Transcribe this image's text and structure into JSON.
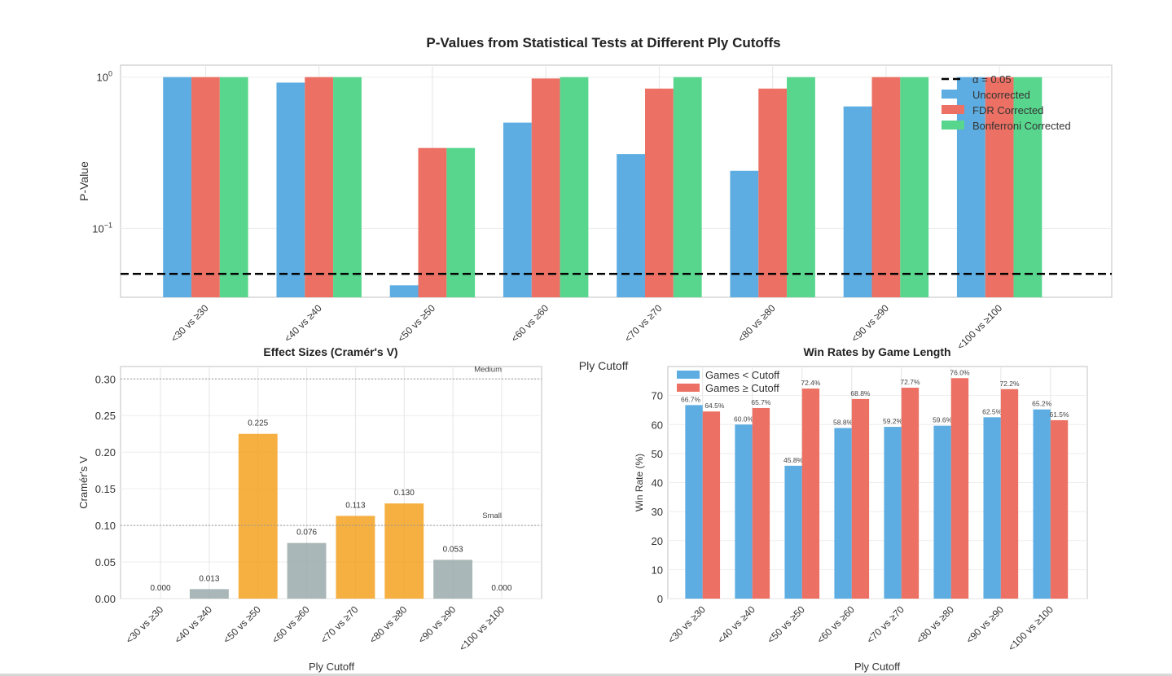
{
  "chart_data": [
    {
      "type": "bar",
      "title": "P-Values from Statistical Tests at Different Ply Cutoffs",
      "xlabel": "Ply Cutoff",
      "ylabel": "P-Value",
      "yscale": "log",
      "ylim": [
        0.035,
        1.2
      ],
      "yticks": [
        {
          "value": 1,
          "label": "10",
          "exp": "0"
        },
        {
          "value": 0.1,
          "label": "10",
          "exp": "−1"
        }
      ],
      "grid": true,
      "legend_position": "top-right",
      "categories": [
        "<30 vs ≥30",
        "<40 vs ≥40",
        "<50 vs ≥50",
        "<60 vs ≥60",
        "<70 vs ≥70",
        "<80 vs ≥80",
        "<90 vs ≥90",
        "<100 vs ≥100"
      ],
      "series": [
        {
          "name": "Uncorrected",
          "color": "#5dade2",
          "values": [
            1.0,
            0.92,
            0.042,
            0.5,
            0.31,
            0.24,
            0.64,
            1.0
          ]
        },
        {
          "name": "FDR Corrected",
          "color": "#ec7063",
          "values": [
            1.0,
            1.0,
            0.34,
            0.98,
            0.84,
            0.84,
            1.0,
            1.0
          ]
        },
        {
          "name": "Bonferroni Corrected",
          "color": "#58d68d",
          "values": [
            1.0,
            1.0,
            0.34,
            1.0,
            1.0,
            1.0,
            1.0,
            1.0
          ]
        }
      ],
      "reference_line": {
        "name": "α = 0.05",
        "value": 0.05,
        "color": "#000000",
        "style": "dashed"
      }
    },
    {
      "type": "bar",
      "title": "Effect Sizes (Cramér's V)",
      "xlabel": "Ply Cutoff",
      "ylabel": "Cramér's V",
      "ylim": [
        0,
        0.317
      ],
      "yticks": [
        "0.00",
        "0.05",
        "0.10",
        "0.15",
        "0.20",
        "0.25",
        "0.30"
      ],
      "grid": true,
      "categories": [
        "<30 vs ≥30",
        "<40 vs ≥40",
        "<50 vs ≥50",
        "<60 vs ≥60",
        "<70 vs ≥70",
        "<80 vs ≥80",
        "<90 vs ≥90",
        "<100 vs ≥100"
      ],
      "values": [
        0.0,
        0.013,
        0.225,
        0.076,
        0.113,
        0.13,
        0.053,
        0.0
      ],
      "data_labels": [
        "0.000",
        "0.013",
        "0.225",
        "0.076",
        "0.113",
        "0.130",
        "0.053",
        "0.000"
      ],
      "bar_colors": [
        "#95a5a6",
        "#95a5a6",
        "#f39c12",
        "#95a5a6",
        "#f39c12",
        "#f39c12",
        "#95a5a6",
        "#95a5a6"
      ],
      "reference_lines": [
        {
          "label": "Small",
          "value": 0.1
        },
        {
          "label": "Medium",
          "value": 0.3
        }
      ]
    },
    {
      "type": "bar",
      "title": "Win Rates by Game Length",
      "xlabel": "Ply Cutoff",
      "ylabel": "Win Rate (%)",
      "ylim": [
        0,
        80
      ],
      "yticks": [
        "0",
        "10",
        "20",
        "30",
        "40",
        "50",
        "60",
        "70"
      ],
      "grid": true,
      "legend_position": "top-left",
      "categories": [
        "<30 vs ≥30",
        "<40 vs ≥40",
        "<50 vs ≥50",
        "<60 vs ≥60",
        "<70 vs ≥70",
        "<80 vs ≥80",
        "<90 vs ≥90",
        "<100 vs ≥100"
      ],
      "series": [
        {
          "name": "Games < Cutoff",
          "color": "#5dade2",
          "values": [
            66.7,
            60.0,
            45.8,
            58.8,
            59.2,
            59.6,
            62.5,
            65.2
          ],
          "data_labels": [
            "66.7%",
            "60.0%",
            "45.8%",
            "58.8%",
            "59.2%",
            "59.6%",
            "62.5%",
            "65.2%"
          ]
        },
        {
          "name": "Games ≥ Cutoff",
          "color": "#ec7063",
          "values": [
            64.5,
            65.7,
            72.4,
            68.8,
            72.7,
            76.0,
            72.2,
            61.5
          ],
          "data_labels": [
            "64.5%",
            "65.7%",
            "72.4%",
            "68.8%",
            "72.7%",
            "76.0%",
            "72.2%",
            "61.5%"
          ]
        }
      ]
    }
  ]
}
